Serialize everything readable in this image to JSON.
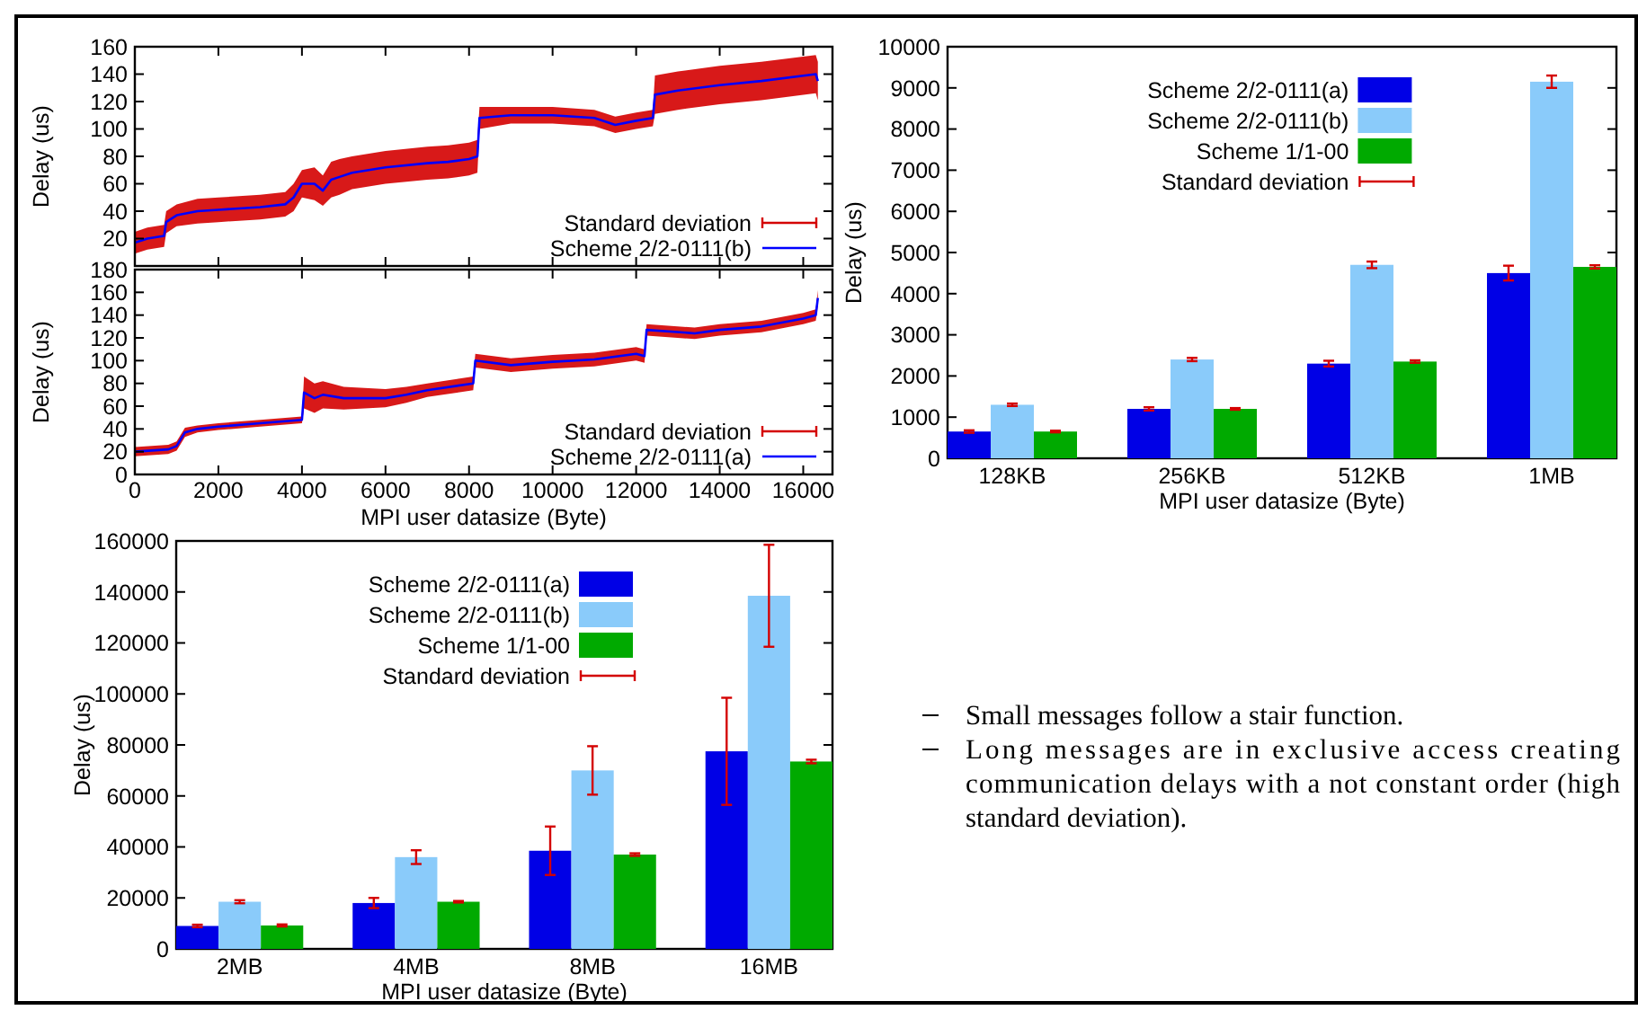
{
  "chart_data": [
    {
      "type": "line",
      "ylabel": "Delay (us)",
      "xlim": [
        0,
        16700
      ],
      "ylim": [
        0,
        160
      ],
      "xticks": [
        0,
        2000,
        4000,
        6000,
        8000,
        10000,
        12000,
        14000,
        16000
      ],
      "yticks": [
        20,
        40,
        60,
        80,
        100,
        120,
        140,
        160
      ],
      "tick_labels": "y",
      "legend": "bottom right",
      "annotations": [
        "Standard deviation"
      ],
      "series": [
        {
          "name": "Scheme 2/2-0111(b)",
          "color": "#0000ff",
          "x": [
            0,
            300,
            700,
            750,
            1000,
            1500,
            2000,
            3000,
            3600,
            3800,
            4000,
            4300,
            4500,
            4700,
            4900,
            5200,
            6000,
            7000,
            7500,
            8000,
            8200,
            8250,
            9000,
            10000,
            11000,
            11500,
            12000,
            12400,
            12450,
            13000,
            14000,
            15000,
            16300,
            16350
          ],
          "values": [
            17,
            20,
            22,
            32,
            37,
            40,
            41,
            43,
            45,
            50,
            60,
            60,
            55,
            63,
            65,
            68,
            72,
            75,
            76,
            78,
            80,
            108,
            110,
            110,
            108,
            103,
            106,
            108,
            125,
            128,
            132,
            135,
            140,
            135
          ],
          "lower": [
            9,
            12,
            14,
            24,
            29,
            31,
            32,
            34,
            36,
            40,
            50,
            48,
            44,
            50,
            52,
            56,
            60,
            63,
            64,
            66,
            68,
            100,
            104,
            104,
            102,
            97,
            100,
            102,
            111,
            114,
            118,
            121,
            126,
            121
          ],
          "upper": [
            25,
            28,
            30,
            40,
            45,
            49,
            50,
            52,
            54,
            60,
            70,
            72,
            66,
            76,
            78,
            80,
            84,
            87,
            88,
            90,
            92,
            116,
            116,
            116,
            114,
            109,
            112,
            114,
            139,
            142,
            146,
            149,
            154,
            149
          ]
        }
      ]
    },
    {
      "type": "line",
      "ylabel": "Delay (us)",
      "xlabel": "MPI user datasize (Byte)",
      "xlim": [
        0,
        16700
      ],
      "ylim": [
        0,
        180
      ],
      "xticks": [
        0,
        2000,
        4000,
        6000,
        8000,
        10000,
        12000,
        14000,
        16000
      ],
      "yticks": [
        0,
        20,
        40,
        60,
        80,
        100,
        120,
        140,
        160,
        180
      ],
      "legend": "bottom right",
      "annotations": [
        "Standard deviation"
      ],
      "series": [
        {
          "name": "Scheme 2/2-0111(a)",
          "color": "#0000ff",
          "x": [
            0,
            800,
            1000,
            1200,
            1500,
            2000,
            3000,
            4000,
            4050,
            4300,
            4500,
            5000,
            6000,
            6500,
            7000,
            8100,
            8150,
            9000,
            10000,
            11000,
            12000,
            12200,
            12250,
            13400,
            14000,
            15000,
            16000,
            16300,
            16350
          ],
          "values": [
            20,
            22,
            25,
            37,
            40,
            42,
            45,
            48,
            72,
            67,
            70,
            67,
            67,
            70,
            74,
            80,
            100,
            96,
            99,
            101,
            106,
            104,
            127,
            124,
            127,
            130,
            137,
            140,
            155
          ],
          "lower": [
            16,
            18,
            21,
            33,
            37,
            39,
            42,
            45,
            58,
            54,
            58,
            57,
            59,
            63,
            68,
            74,
            94,
            90,
            93,
            95,
            100,
            98,
            122,
            119,
            122,
            125,
            132,
            135,
            148
          ],
          "upper": [
            24,
            26,
            29,
            41,
            43,
            45,
            48,
            51,
            86,
            80,
            82,
            77,
            75,
            77,
            80,
            86,
            106,
            102,
            105,
            107,
            112,
            110,
            132,
            129,
            132,
            135,
            142,
            145,
            162
          ]
        }
      ]
    },
    {
      "type": "bar",
      "ylabel": "Delay (us)",
      "xlabel": "MPI user datasize (Byte)",
      "categories": [
        "128KB",
        "256KB",
        "512KB",
        "1MB"
      ],
      "ylim": [
        0,
        10000
      ],
      "yticks": [
        0,
        1000,
        2000,
        3000,
        4000,
        5000,
        6000,
        7000,
        8000,
        9000,
        10000
      ],
      "legend": "top",
      "annotations": [
        "Standard deviation"
      ],
      "series": [
        {
          "name": "Scheme 2/2-0111(a)",
          "color": "#0000e6",
          "values": [
            650,
            1200,
            2300,
            4500
          ],
          "errors": [
            30,
            40,
            70,
            180
          ]
        },
        {
          "name": "Scheme 2/2-0111(b)",
          "color": "#8acbfa",
          "values": [
            1300,
            2400,
            4700,
            9150
          ],
          "errors": [
            30,
            40,
            80,
            150
          ]
        },
        {
          "name": "Scheme 1/1-00",
          "color": "#00aa00",
          "values": [
            650,
            1200,
            2350,
            4650
          ],
          "errors": [
            20,
            20,
            30,
            40
          ]
        }
      ]
    },
    {
      "type": "bar",
      "ylabel": "Delay (us)",
      "xlabel": "MPI user datasize (Byte)",
      "categories": [
        "2MB",
        "4MB",
        "8MB",
        "16MB"
      ],
      "ylim": [
        0,
        160000
      ],
      "yticks": [
        0,
        20000,
        40000,
        60000,
        80000,
        100000,
        120000,
        140000,
        160000
      ],
      "legend": "top",
      "annotations": [
        "Standard deviation"
      ],
      "series": [
        {
          "name": "Scheme 2/2-0111(a)",
          "color": "#0000e6",
          "values": [
            9000,
            18000,
            38500,
            77500
          ],
          "errors": [
            500,
            2000,
            9500,
            21000
          ]
        },
        {
          "name": "Scheme 2/2-0111(b)",
          "color": "#8acbfa",
          "values": [
            18500,
            36000,
            70000,
            138500
          ],
          "errors": [
            600,
            2700,
            9500,
            20000
          ]
        },
        {
          "name": "Scheme 1/1-00",
          "color": "#00aa00",
          "values": [
            9200,
            18500,
            37000,
            73500
          ],
          "errors": [
            400,
            300,
            500,
            700
          ]
        }
      ]
    },
    {
      "type": "other",
      "annotations": [
        "Small messages follow a stair function.",
        "Long messages are in exclusive access creating communication delays with a not constant order (high standard deviation)."
      ]
    }
  ]
}
